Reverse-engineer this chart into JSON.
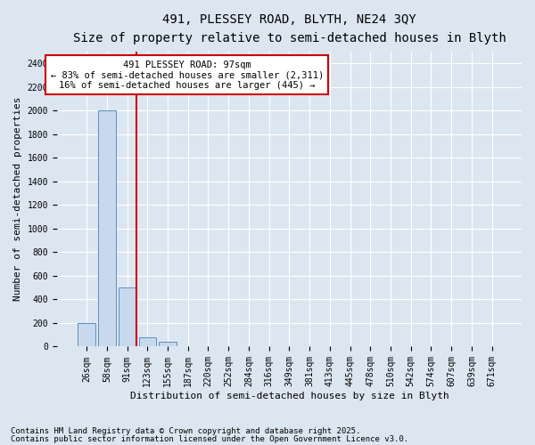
{
  "title1": "491, PLESSEY ROAD, BLYTH, NE24 3QY",
  "title2": "Size of property relative to semi-detached houses in Blyth",
  "xlabel": "Distribution of semi-detached houses by size in Blyth",
  "ylabel": "Number of semi-detached properties",
  "categories": [
    "26sqm",
    "58sqm",
    "91sqm",
    "123sqm",
    "155sqm",
    "187sqm",
    "220sqm",
    "252sqm",
    "284sqm",
    "316sqm",
    "349sqm",
    "381sqm",
    "413sqm",
    "445sqm",
    "478sqm",
    "510sqm",
    "542sqm",
    "574sqm",
    "607sqm",
    "639sqm",
    "671sqm"
  ],
  "values": [
    200,
    2000,
    500,
    80,
    40,
    0,
    0,
    0,
    0,
    0,
    0,
    0,
    0,
    0,
    0,
    0,
    0,
    0,
    0,
    0,
    0
  ],
  "bar_color": "#c8d9ed",
  "bar_edge_color": "#5a8fc0",
  "grid_color": "#ffffff",
  "background_color": "#dce6f1",
  "vline_color": "#cc0000",
  "vline_x_index": 2.45,
  "annotation_title": "491 PLESSEY ROAD: 97sqm",
  "annotation_line1": "← 83% of semi-detached houses are smaller (2,311)",
  "annotation_line2": "16% of semi-detached houses are larger (445) →",
  "annotation_box_color": "#cc0000",
  "ylim": [
    0,
    2500
  ],
  "yticks": [
    0,
    200,
    400,
    600,
    800,
    1000,
    1200,
    1400,
    1600,
    1800,
    2000,
    2200,
    2400
  ],
  "footnote1": "Contains HM Land Registry data © Crown copyright and database right 2025.",
  "footnote2": "Contains public sector information licensed under the Open Government Licence v3.0.",
  "title1_fontsize": 10,
  "title2_fontsize": 9,
  "xlabel_fontsize": 8,
  "ylabel_fontsize": 8,
  "tick_fontsize": 7,
  "annotation_fontsize": 7.5,
  "footnote_fontsize": 6.5
}
